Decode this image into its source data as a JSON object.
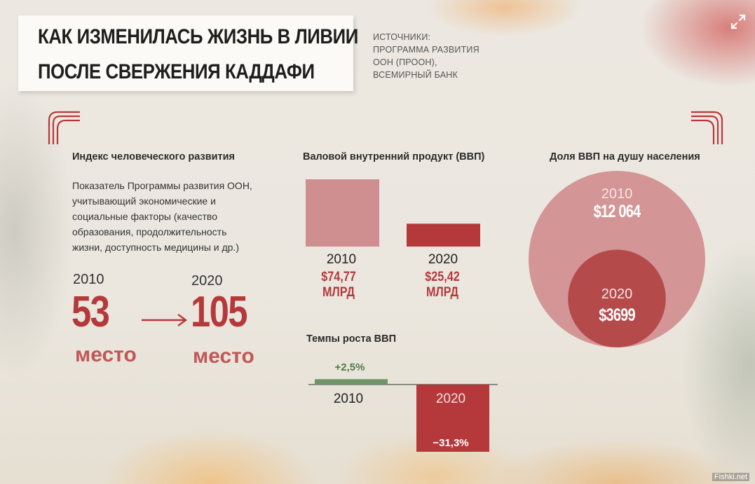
{
  "title": {
    "line1": "КАК ИЗМЕНИЛАСЬ ЖИЗНЬ В ЛИВИИ",
    "line2": "ПОСЛЕ СВЕРЖЕНИЯ КАДДАФИ"
  },
  "sources": {
    "lines": [
      "ИСТОЧНИКИ:",
      "ПРОГРАММА РАЗВИТИЯ",
      "ООН (ПРООН),",
      "ВСЕМИРНЫЙ БАНК"
    ]
  },
  "hdi": {
    "heading": "Индекс человеческого развития",
    "description": [
      "Показатель Программы развития ООН,",
      "учитывающий экономические и",
      "социальные факторы (качество",
      "образования, продолжительность",
      "жизни, доступность медицины и др.)"
    ],
    "from": {
      "year": "2010",
      "rank": "53",
      "unit": "место"
    },
    "to": {
      "year": "2020",
      "rank": "105",
      "unit": "место"
    }
  },
  "watermark": "Fishki.net",
  "icons": {
    "expand": "expand-icon",
    "corner": "ornament-corner-icon",
    "arrow": "arrow-right-icon"
  },
  "colors": {
    "accent_red": "#b5393b",
    "light_red": "#c98586",
    "green": "#6f9468",
    "circle_outer": "#d49596",
    "circle_inner": "#b54a4b"
  },
  "chart_data": [
    {
      "type": "bar",
      "title": "Валовой внутренний продукт (ВВП)",
      "categories": [
        "2010",
        "2020"
      ],
      "values": [
        74.77,
        25.42
      ],
      "labels": [
        "$74,77",
        "$25,42"
      ],
      "unit_label": "МЛРД",
      "colors": [
        "#cf8f90",
        "#b5393b"
      ]
    },
    {
      "type": "bar",
      "title": "Темпы роста ВВП",
      "categories": [
        "2010",
        "2020"
      ],
      "values": [
        2.5,
        -31.3
      ],
      "labels": [
        "+2,5%",
        "−31,3%"
      ],
      "colors": [
        "#6f9468",
        "#b5393b"
      ]
    },
    {
      "type": "bubble",
      "title": "Доля ВВП на душу населения",
      "categories": [
        "2010",
        "2020"
      ],
      "values": [
        12064,
        3699
      ],
      "labels": [
        "$12 064",
        "$3699"
      ]
    }
  ]
}
